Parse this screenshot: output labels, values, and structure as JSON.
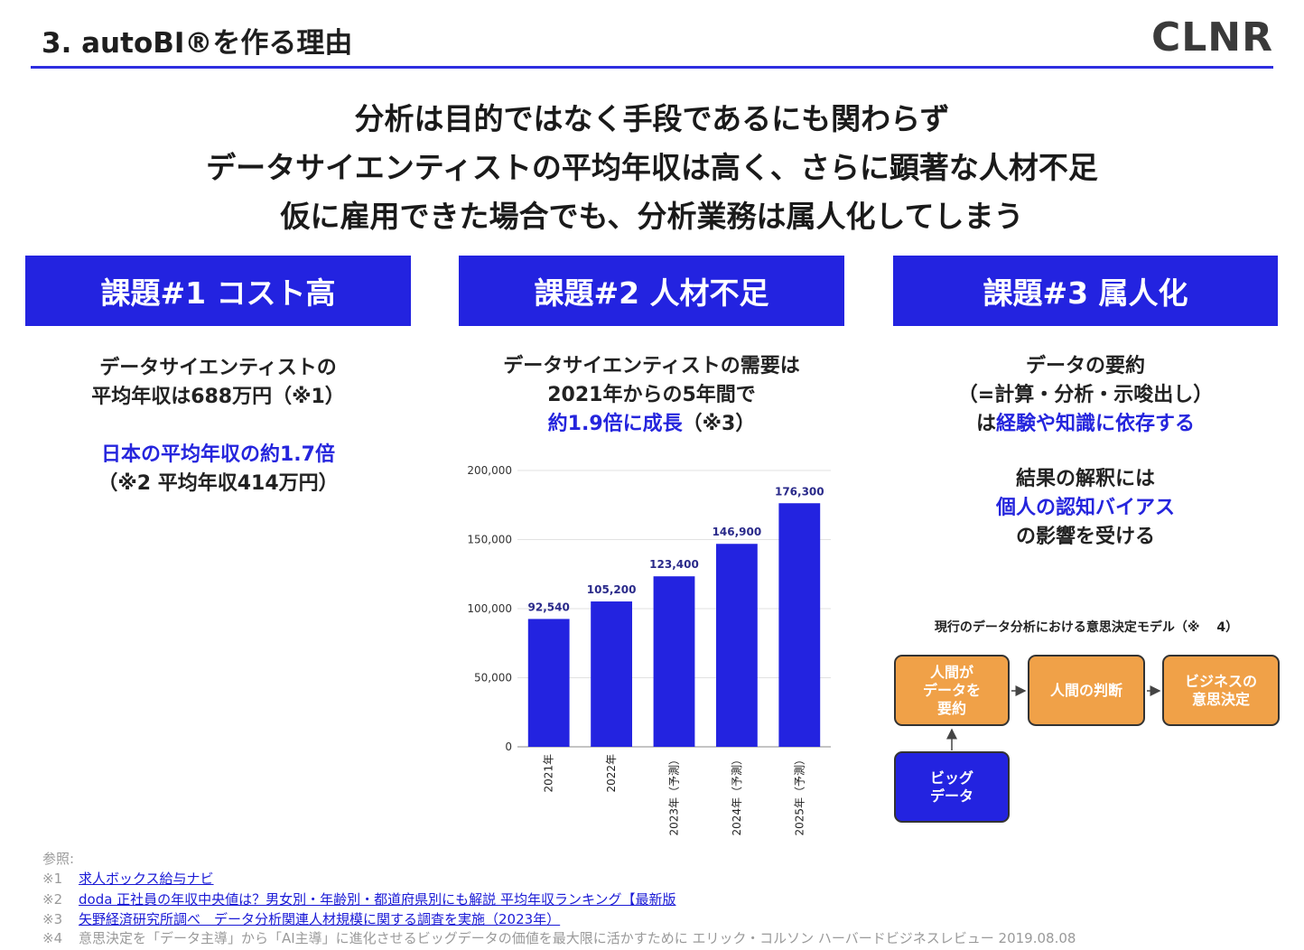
{
  "header": {
    "section_title": "3. autoBI®を作る理由",
    "brand_logo": "CLNR",
    "accent_color": "#2323e0"
  },
  "headline": {
    "line1": "分析は目的ではなく手段であるにも関わらず",
    "line2": "データサイエンティストの平均年収は高く、さらに顕著な人材不足",
    "line3": "仮に雇用できた場合でも、分析業務は属人化してしまう"
  },
  "issues": [
    {
      "title": "課題#1 コスト高",
      "lines": [
        "データサイエンティストの",
        "平均年収は688万円（※1）"
      ],
      "highlight": "日本の平均年収の約1.7倍",
      "note": "（※2 平均年収414万円）"
    },
    {
      "title": "課題#2 人材不足",
      "lines": [
        "データサイエンティストの需要は",
        "2021年からの5年間で"
      ],
      "highlight": "約1.9倍に成長",
      "highlight_suffix": "（※3）"
    },
    {
      "title": "課題#3 属人化",
      "lines": [
        "データの要約",
        "（=計算・分析・示唆出し）"
      ],
      "line3_prefix": "は",
      "line3_highlight": "経験や知識に依存する",
      "line4": "結果の解釈には",
      "line5_highlight": "個人の認知バイアス",
      "line6": "の影響を受ける"
    }
  ],
  "chart_data": {
    "type": "bar",
    "categories": [
      "2021年",
      "2022年",
      "2023年（予測）",
      "2024年（予測）",
      "2025年（予測）"
    ],
    "values": [
      92540,
      105200,
      123400,
      146900,
      176300
    ],
    "value_labels": [
      "92,540",
      "105,200",
      "123,400",
      "146,900",
      "176,300"
    ],
    "ylim": [
      0,
      200000
    ],
    "yticks": [
      0,
      50000,
      100000,
      150000,
      200000
    ],
    "ytick_labels": [
      "0",
      "50,000",
      "100,000",
      "150,000",
      "200,000"
    ],
    "bar_color": "#2323e0",
    "grid": true,
    "title": "",
    "xlabel": "",
    "ylabel": ""
  },
  "diagram": {
    "title": "現行のデータ分析における意思決定モデル（※　 4）",
    "box_human_summary": [
      "人間が",
      "データを",
      "要約"
    ],
    "box_human_judge": "人間の判断",
    "box_business": [
      "ビジネスの",
      "意思決定"
    ],
    "box_bigdata": [
      "ビッグ",
      "データ"
    ],
    "orange_color": "#f0a148",
    "blue_color": "#2323e0"
  },
  "references": {
    "heading": "参照:",
    "items": [
      {
        "mark": "※1",
        "text": "求人ボックス給与ナビ",
        "link": true
      },
      {
        "mark": "※2",
        "text": "doda 正社員の年収中央値は？男女別・年齢別・都道府県別にも解説 平均年収ランキング【最新版",
        "link": true
      },
      {
        "mark": "※3",
        "text": "矢野経済研究所調べ　データ分析関連人材規模に関する調査を実施（2023年）",
        "link": true
      },
      {
        "mark": "※4",
        "text": "意思決定を「データ主導」から「AI主導」に進化させるビッグデータの価値を最大限に活かすために エリック・コルソン ハーバードビジネスレビュー 2019.08.08",
        "link": false
      }
    ]
  }
}
